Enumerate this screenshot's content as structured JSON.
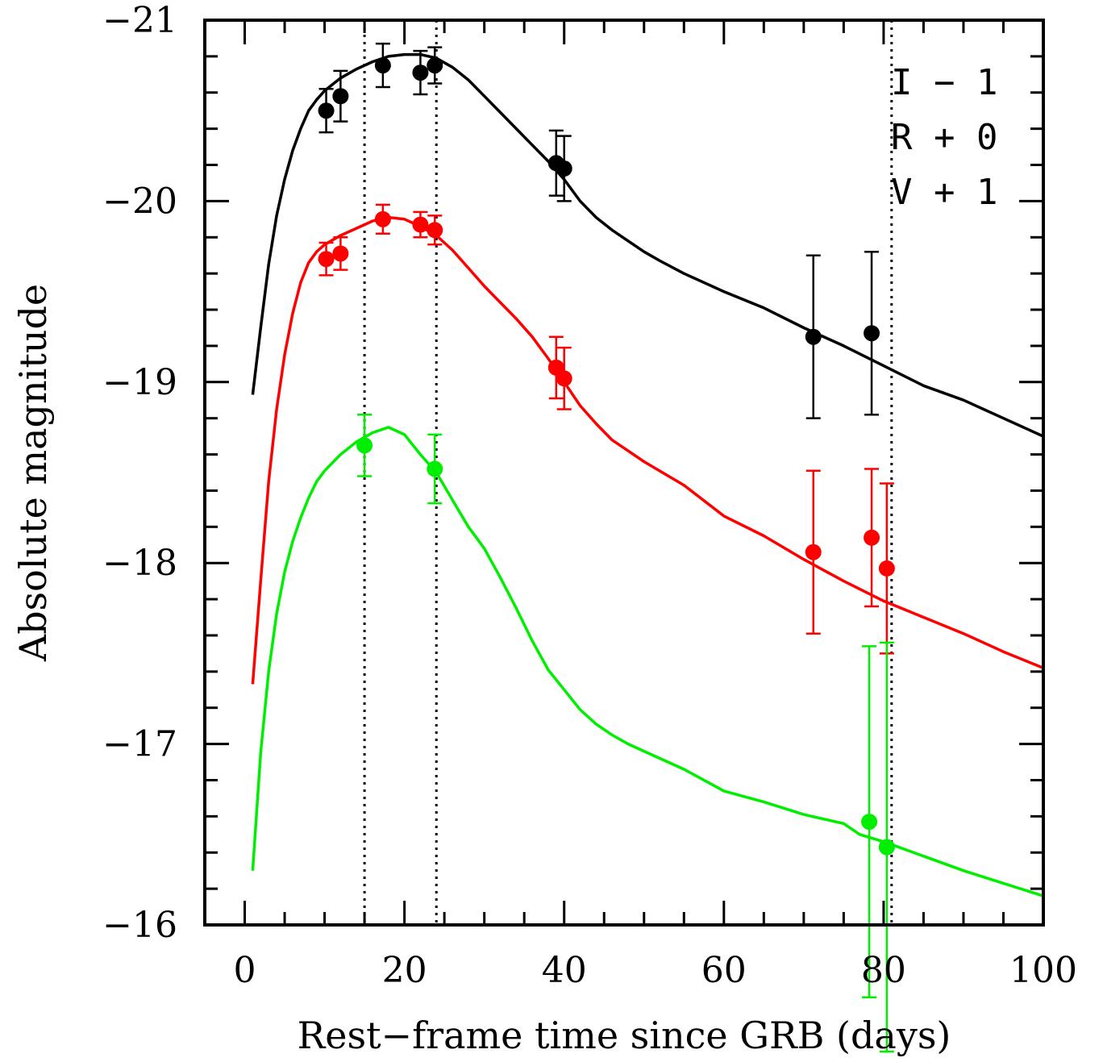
{
  "chart_data": {
    "type": "line",
    "title": "",
    "xlabel": "Rest−frame time since GRB (days)",
    "ylabel": "Absolute magnitude",
    "xlim": [
      -5,
      100
    ],
    "ylim": [
      -16,
      -21
    ],
    "y_inverted": true,
    "x_ticks": [
      0,
      20,
      40,
      60,
      80,
      100
    ],
    "x_tick_labels": [
      "0",
      "20",
      "40",
      "60",
      "80",
      "100"
    ],
    "y_ticks": [
      -21,
      -20,
      -19,
      -18,
      -17,
      -16
    ],
    "y_tick_labels": [
      "−21",
      "−20",
      "−19",
      "−18",
      "−17",
      "−16"
    ],
    "legend": [
      "I − 1",
      "R + 0",
      "V + 1"
    ],
    "legend_placement": "top-right",
    "vertical_lines": [
      15,
      24,
      81
    ],
    "series": [
      {
        "name": "I − 1",
        "color": "#000000",
        "points": [
          {
            "x": 10.2,
            "y": -20.5,
            "err": 0.12
          },
          {
            "x": 12.0,
            "y": -20.58,
            "err": 0.14
          },
          {
            "x": 17.3,
            "y": -20.75,
            "err": 0.12
          },
          {
            "x": 22.0,
            "y": -20.71,
            "err": 0.12
          },
          {
            "x": 23.8,
            "y": -20.75,
            "err": 0.1
          },
          {
            "x": 39.0,
            "y": -20.21,
            "err": 0.18
          },
          {
            "x": 40.0,
            "y": -20.18,
            "err": 0.18
          },
          {
            "x": 71.2,
            "y": -19.25,
            "err": 0.45
          },
          {
            "x": 78.5,
            "y": -19.27,
            "err": 0.45
          }
        ],
        "curve": [
          [
            1,
            -18.93
          ],
          [
            2,
            -19.3
          ],
          [
            3,
            -19.65
          ],
          [
            4,
            -19.92
          ],
          [
            5,
            -20.12
          ],
          [
            6,
            -20.28
          ],
          [
            7,
            -20.4
          ],
          [
            8,
            -20.5
          ],
          [
            9,
            -20.56
          ],
          [
            10,
            -20.61
          ],
          [
            12,
            -20.68
          ],
          [
            14,
            -20.73
          ],
          [
            16,
            -20.77
          ],
          [
            18,
            -20.8
          ],
          [
            20,
            -20.81
          ],
          [
            22,
            -20.81
          ],
          [
            24,
            -20.79
          ],
          [
            26,
            -20.74
          ],
          [
            28,
            -20.67
          ],
          [
            30,
            -20.58
          ],
          [
            32,
            -20.49
          ],
          [
            34,
            -20.4
          ],
          [
            36,
            -20.31
          ],
          [
            38,
            -20.22
          ],
          [
            40,
            -20.12
          ],
          [
            42,
            -20.0
          ],
          [
            44,
            -19.91
          ],
          [
            46,
            -19.84
          ],
          [
            48,
            -19.78
          ],
          [
            50,
            -19.72
          ],
          [
            52,
            -19.67
          ],
          [
            55,
            -19.6
          ],
          [
            60,
            -19.5
          ],
          [
            65,
            -19.41
          ],
          [
            70,
            -19.3
          ],
          [
            75,
            -19.2
          ],
          [
            80,
            -19.09
          ],
          [
            85,
            -18.98
          ],
          [
            90,
            -18.9
          ],
          [
            95,
            -18.8
          ],
          [
            100,
            -18.7
          ]
        ]
      },
      {
        "name": "R + 0",
        "color": "#ff0000",
        "points": [
          {
            "x": 10.2,
            "y": -19.68,
            "err": 0.09
          },
          {
            "x": 12.0,
            "y": -19.71,
            "err": 0.09
          },
          {
            "x": 17.3,
            "y": -19.9,
            "err": 0.08
          },
          {
            "x": 22.0,
            "y": -19.87,
            "err": 0.07
          },
          {
            "x": 23.8,
            "y": -19.84,
            "err": 0.08
          },
          {
            "x": 39.0,
            "y": -19.08,
            "err": 0.17
          },
          {
            "x": 40.0,
            "y": -19.02,
            "err": 0.17
          },
          {
            "x": 71.2,
            "y": -18.06,
            "err": 0.45
          },
          {
            "x": 78.5,
            "y": -18.14,
            "err": 0.38
          },
          {
            "x": 80.4,
            "y": -17.97,
            "err": 0.47
          }
        ],
        "curve": [
          [
            1,
            -17.33
          ],
          [
            2,
            -17.9
          ],
          [
            3,
            -18.45
          ],
          [
            4,
            -18.85
          ],
          [
            5,
            -19.15
          ],
          [
            6,
            -19.38
          ],
          [
            7,
            -19.55
          ],
          [
            8,
            -19.66
          ],
          [
            9,
            -19.72
          ],
          [
            10,
            -19.76
          ],
          [
            12,
            -19.81
          ],
          [
            14,
            -19.85
          ],
          [
            16,
            -19.89
          ],
          [
            18,
            -19.91
          ],
          [
            20,
            -19.9
          ],
          [
            22,
            -19.86
          ],
          [
            24,
            -19.81
          ],
          [
            26,
            -19.73
          ],
          [
            28,
            -19.63
          ],
          [
            30,
            -19.53
          ],
          [
            32,
            -19.44
          ],
          [
            34,
            -19.35
          ],
          [
            36,
            -19.25
          ],
          [
            38,
            -19.13
          ],
          [
            40,
            -19.0
          ],
          [
            42,
            -18.87
          ],
          [
            44,
            -18.77
          ],
          [
            46,
            -18.68
          ],
          [
            48,
            -18.62
          ],
          [
            50,
            -18.56
          ],
          [
            55,
            -18.43
          ],
          [
            60,
            -18.26
          ],
          [
            65,
            -18.15
          ],
          [
            70,
            -18.02
          ],
          [
            75,
            -17.9
          ],
          [
            80,
            -17.79
          ],
          [
            85,
            -17.7
          ],
          [
            90,
            -17.61
          ],
          [
            95,
            -17.51
          ],
          [
            100,
            -17.42
          ]
        ]
      },
      {
        "name": "V + 1",
        "color": "#00ee00",
        "points": [
          {
            "x": 15.0,
            "y": -18.65,
            "err": 0.17
          },
          {
            "x": 23.8,
            "y": -18.52,
            "err": 0.19
          },
          {
            "x": 78.2,
            "y": -16.57,
            "err": 0.97
          },
          {
            "x": 80.4,
            "y": -16.43,
            "err": 1.13
          }
        ],
        "curve": [
          [
            1,
            -16.3
          ],
          [
            2,
            -16.95
          ],
          [
            3,
            -17.4
          ],
          [
            4,
            -17.72
          ],
          [
            5,
            -17.95
          ],
          [
            6,
            -18.12
          ],
          [
            7,
            -18.25
          ],
          [
            8,
            -18.36
          ],
          [
            9,
            -18.45
          ],
          [
            10,
            -18.51
          ],
          [
            12,
            -18.6
          ],
          [
            14,
            -18.67
          ],
          [
            16,
            -18.72
          ],
          [
            18,
            -18.75
          ],
          [
            20,
            -18.71
          ],
          [
            22,
            -18.6
          ],
          [
            24,
            -18.5
          ],
          [
            26,
            -18.35
          ],
          [
            28,
            -18.2
          ],
          [
            30,
            -18.08
          ],
          [
            32,
            -17.92
          ],
          [
            34,
            -17.75
          ],
          [
            36,
            -17.57
          ],
          [
            38,
            -17.41
          ],
          [
            40,
            -17.3
          ],
          [
            42,
            -17.19
          ],
          [
            44,
            -17.11
          ],
          [
            46,
            -17.05
          ],
          [
            48,
            -17.0
          ],
          [
            50,
            -16.96
          ],
          [
            55,
            -16.86
          ],
          [
            60,
            -16.74
          ],
          [
            65,
            -16.68
          ],
          [
            70,
            -16.61
          ],
          [
            75,
            -16.56
          ],
          [
            77,
            -16.5
          ],
          [
            80,
            -16.46
          ],
          [
            85,
            -16.38
          ],
          [
            90,
            -16.3
          ],
          [
            95,
            -16.23
          ],
          [
            100,
            -16.16
          ]
        ]
      }
    ]
  }
}
